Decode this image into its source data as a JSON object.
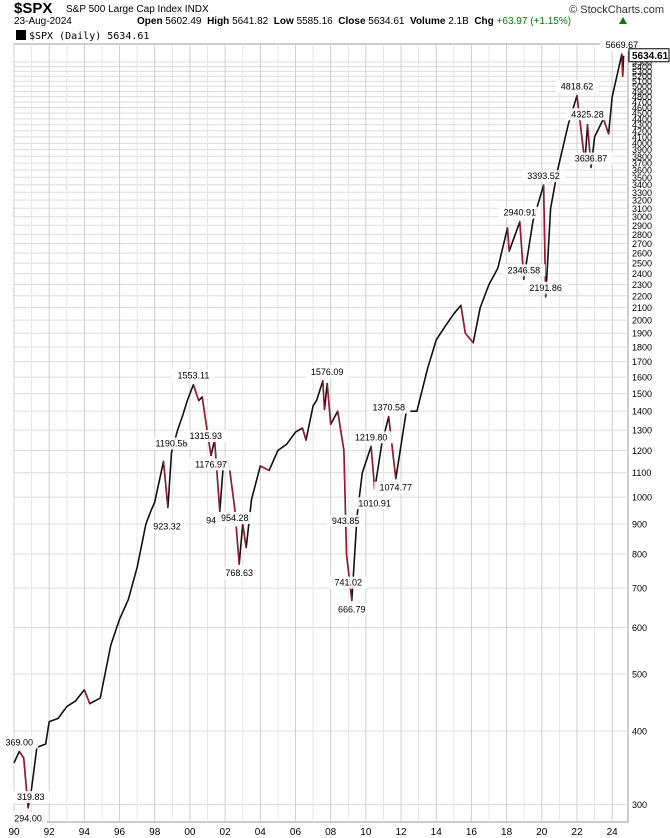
{
  "header": {
    "ticker": "$SPX",
    "name": "S&P 500 Large Cap Index INDX",
    "brand": "© StockCharts.com",
    "date": "23-Aug-2024",
    "open_label": "Open",
    "open": "5602.49",
    "high_label": "High",
    "high": "5641.82",
    "low_label": "Low",
    "low": "5585.16",
    "close_label": "Close",
    "close": "5634.61",
    "volume_label": "Volume",
    "volume": "2.1B",
    "chg_label": "Chg",
    "chg": "+63.97 (+1.15%)",
    "legend": "$SPX (Daily) 5634.61"
  },
  "chart_data": {
    "type": "line",
    "title": "$SPX S&P 500 Large Cap Index INDX",
    "scale": "log",
    "grid": true,
    "ylim": [
      280,
      5900
    ],
    "xlim": [
      1990.0,
      2024.9
    ],
    "current_value": 5634.61,
    "current_value_label": "5634.61",
    "x_tick_labels": [
      "90",
      "92",
      "94",
      "96",
      "98",
      "00",
      "02",
      "04",
      "06",
      "08",
      "10",
      "12",
      "14",
      "16",
      "18",
      "20",
      "22",
      "24"
    ],
    "x_tick_values": [
      1990,
      1992,
      1994,
      1996,
      1998,
      2000,
      2002,
      2004,
      2006,
      2008,
      2010,
      2012,
      2014,
      2016,
      2018,
      2020,
      2022,
      2024
    ],
    "y_ticks": [
      300,
      400,
      500,
      600,
      700,
      800,
      900,
      1000,
      1100,
      1200,
      1300,
      1400,
      1500,
      1600,
      1700,
      1800,
      1900,
      2000,
      2100,
      2200,
      2300,
      2400,
      2500,
      2600,
      2700,
      2800,
      2900,
      3000,
      3100,
      3200,
      3300,
      3400,
      3500,
      3600,
      3700,
      3800,
      3900,
      4000,
      4100,
      4200,
      4300,
      4400,
      4500,
      4600,
      4700,
      4800,
      4900,
      5000,
      5100,
      5200,
      5300,
      5400,
      5500
    ],
    "series": [
      {
        "name": "$SPX (Daily)",
        "x": [
          1990.0,
          1990.3,
          1990.55,
          1990.8,
          1991.0,
          1991.3,
          1991.8,
          1992.0,
          1992.5,
          1993.0,
          1993.5,
          1994.0,
          1994.3,
          1994.9,
          1995.5,
          1996.0,
          1996.5,
          1997.0,
          1997.5,
          1997.8,
          1998.0,
          1998.5,
          1998.75,
          1998.95,
          1999.3,
          1999.6,
          1999.85,
          2000.2,
          2000.5,
          2000.7,
          2000.95,
          2001.2,
          2001.4,
          2001.7,
          2001.9,
          2002.2,
          2002.55,
          2002.8,
          2003.0,
          2003.2,
          2003.5,
          2004.0,
          2004.5,
          2005.0,
          2005.5,
          2006.0,
          2006.4,
          2006.6,
          2007.0,
          2007.2,
          2007.55,
          2007.65,
          2007.8,
          2008.0,
          2008.4,
          2008.75,
          2008.9,
          2009.2,
          2009.5,
          2009.8,
          2010.3,
          2010.5,
          2010.9,
          2011.3,
          2011.7,
          2012.3,
          2012.9,
          2013.5,
          2014.0,
          2014.5,
          2015.0,
          2015.4,
          2015.65,
          2016.1,
          2016.5,
          2017.0,
          2017.5,
          2018.05,
          2018.15,
          2018.75,
          2018.98,
          2019.5,
          2020.1,
          2020.22,
          2020.5,
          2020.9,
          2021.5,
          2022.0,
          2022.45,
          2022.6,
          2022.8,
          2023.0,
          2023.5,
          2023.8,
          2024.0,
          2024.3,
          2024.55,
          2024.6,
          2024.65
        ],
        "values": [
          353,
          369,
          360,
          296,
          319.83,
          375,
          380,
          415,
          420,
          440,
          450,
          470,
          445,
          455,
          560,
          620,
          670,
          760,
          900,
          950,
          980,
          1150,
          960,
          1190.58,
          1300,
          1380,
          1460,
          1553.11,
          1460,
          1480,
          1315.93,
          1176.97,
          1250,
          944.75,
          1140,
          1150,
          954.28,
          768.63,
          900,
          820,
          990,
          1130,
          1110,
          1200,
          1230,
          1290,
          1310,
          1250,
          1430,
          1460,
          1576.09,
          1410,
          1560,
          1330,
          1400,
          1200,
          800,
          666.79,
          930,
          1100,
          1219.8,
          1030,
          1230,
          1370.58,
          1074.77,
          1400,
          1400,
          1650,
          1850,
          1950,
          2050,
          2120,
          1900,
          1830,
          2100,
          2300,
          2450,
          2870,
          2620,
          2940.91,
          2346.58,
          2950,
          3393.52,
          2191.86,
          3100,
          3600,
          4300,
          4818.62,
          3700,
          4300,
          3636.87,
          4100,
          4400,
          4150,
          4800,
          5250,
          5669.67,
          5200,
          5634.61
        ]
      }
    ],
    "annotations": [
      {
        "label": "369.00",
        "x": 1990.3,
        "y": 369
      },
      {
        "label": "319.83",
        "x": 1990.95,
        "y": 319.83
      },
      {
        "label": "294.00",
        "x": 1990.8,
        "y": 294
      },
      {
        "label": "923.32",
        "x": 1998.7,
        "y": 923.32
      },
      {
        "label": "1190.58",
        "x": 1998.95,
        "y": 1190.58
      },
      {
        "label": "1553.11",
        "x": 2000.2,
        "y": 1553.11
      },
      {
        "label": "1315.93",
        "x": 2000.9,
        "y": 1315.93
      },
      {
        "label": "1176.97",
        "x": 2001.2,
        "y": 1176.97
      },
      {
        "label": "944.75",
        "x": 2001.7,
        "y": 944.75
      },
      {
        "label": "954.28",
        "x": 2002.55,
        "y": 954.28
      },
      {
        "label": "768.63",
        "x": 2002.8,
        "y": 768.63
      },
      {
        "label": "1576.09",
        "x": 2007.8,
        "y": 1576.09
      },
      {
        "label": "943.85",
        "x": 2008.85,
        "y": 943.85
      },
      {
        "label": "741.02",
        "x": 2009.0,
        "y": 741.02
      },
      {
        "label": "666.79",
        "x": 2009.2,
        "y": 666.79
      },
      {
        "label": "1010.91",
        "x": 2010.5,
        "y": 1010.91
      },
      {
        "label": "1219.80",
        "x": 2010.3,
        "y": 1219.8
      },
      {
        "label": "1370.58",
        "x": 2011.3,
        "y": 1370.58
      },
      {
        "label": "1074.77",
        "x": 2011.7,
        "y": 1074.77
      },
      {
        "label": "2940.91",
        "x": 2018.75,
        "y": 2940.91
      },
      {
        "label": "2346.58",
        "x": 2018.98,
        "y": 2346.58
      },
      {
        "label": "3393.52",
        "x": 2020.1,
        "y": 3393.52
      },
      {
        "label": "2191.86",
        "x": 2020.22,
        "y": 2191.86
      },
      {
        "label": "4818.62",
        "x": 2022.0,
        "y": 4818.62
      },
      {
        "label": "4325.28",
        "x": 2022.6,
        "y": 4325.28
      },
      {
        "label": "3636.87",
        "x": 2022.8,
        "y": 3636.87
      },
      {
        "label": "5669.67",
        "x": 2024.55,
        "y": 5669.67
      }
    ]
  }
}
